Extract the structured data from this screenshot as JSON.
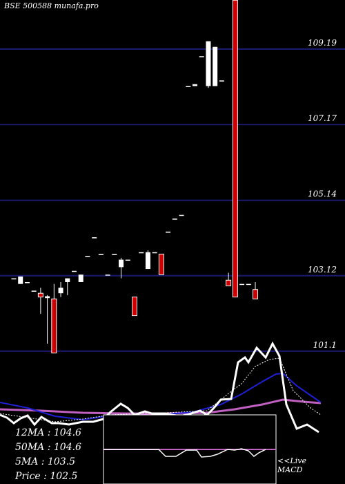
{
  "header": {
    "title": "BSE 500588  munafa.pro"
  },
  "colors": {
    "background": "#000000",
    "gridline": "#1a1a6e",
    "bull": "#ffffff",
    "bear": "#cc0000",
    "ma_fast": "#ffffff",
    "ma_mid": "#1f1fd6",
    "ma_slow": "#c060c0",
    "macd_line": "#ffffff",
    "macd_signal": "#c060c0"
  },
  "stats": {
    "ma12": "12MA : 104.6",
    "ma50": "50MA : 104.6",
    "ma5": "5MA : 103.5",
    "price": "Price   : 102.5"
  },
  "macd_panel": {
    "label_line1": "<<Live",
    "label_line2": "MACD"
  },
  "chart_data": {
    "type": "candlestick",
    "title": "BSE 500588  munafa.pro",
    "y_ticks": [
      109.19,
      107.17,
      105.14,
      103.12,
      101.1
    ],
    "ylim": [
      99.6,
      110.5
    ],
    "grid": true,
    "candles": [
      {
        "o": 103.05,
        "c": 103.05,
        "h": 103.05,
        "l": 103.05
      },
      {
        "o": 102.9,
        "c": 103.1,
        "h": 103.1,
        "l": 102.9
      },
      {
        "o": 102.95,
        "c": 102.95,
        "h": 102.95,
        "l": 102.95
      },
      {
        "o": 102.72,
        "c": 102.72,
        "h": 102.72,
        "l": 102.72
      },
      {
        "o": 102.65,
        "c": 102.55,
        "h": 102.8,
        "l": 102.1
      },
      {
        "o": 102.52,
        "c": 102.57,
        "h": 102.6,
        "l": 101.3
      },
      {
        "o": 102.5,
        "c": 101.05,
        "h": 102.9,
        "l": 101.05
      },
      {
        "o": 102.65,
        "c": 102.8,
        "h": 102.95,
        "l": 102.55
      },
      {
        "o": 102.95,
        "c": 103.05,
        "h": 103.05,
        "l": 102.6
      },
      {
        "o": 103.25,
        "c": 103.25,
        "h": 103.25,
        "l": 103.25
      },
      {
        "o": 102.95,
        "c": 103.15,
        "h": 103.15,
        "l": 102.95
      },
      {
        "o": 103.65,
        "c": 103.65,
        "h": 103.65,
        "l": 103.65
      },
      {
        "o": 104.15,
        "c": 104.15,
        "h": 104.15,
        "l": 104.15
      },
      {
        "o": 103.7,
        "c": 103.7,
        "h": 103.7,
        "l": 103.7
      },
      {
        "o": 103.15,
        "c": 103.15,
        "h": 103.15,
        "l": 103.15
      },
      {
        "o": 103.7,
        "c": 103.7,
        "h": 103.7,
        "l": 103.7
      },
      {
        "o": 103.35,
        "c": 103.55,
        "h": 103.6,
        "l": 103.05
      },
      {
        "o": 103.55,
        "c": 103.55,
        "h": 103.55,
        "l": 103.55
      },
      {
        "o": 102.55,
        "c": 102.05,
        "h": 102.55,
        "l": 102.05
      },
      {
        "o": 103.75,
        "c": 103.75,
        "h": 103.75,
        "l": 103.75
      },
      {
        "o": 103.3,
        "c": 103.75,
        "h": 103.8,
        "l": 103.3
      },
      {
        "o": 103.75,
        "c": 103.75,
        "h": 103.75,
        "l": 103.75
      },
      {
        "o": 103.7,
        "c": 103.15,
        "h": 103.7,
        "l": 103.15
      },
      {
        "o": 104.3,
        "c": 104.3,
        "h": 104.3,
        "l": 104.3
      },
      {
        "o": 104.65,
        "c": 104.65,
        "h": 104.65,
        "l": 104.65
      },
      {
        "o": 104.75,
        "c": 104.75,
        "h": 104.75,
        "l": 104.75
      },
      {
        "o": 108.2,
        "c": 108.2,
        "h": 108.2,
        "l": 108.2
      },
      {
        "o": 108.2,
        "c": 108.25,
        "h": 108.25,
        "l": 108.2
      },
      {
        "o": 109.0,
        "c": 109.0,
        "h": 109.0,
        "l": 109.0
      },
      {
        "o": 108.2,
        "c": 109.4,
        "h": 109.4,
        "l": 108.15
      },
      {
        "o": 108.2,
        "c": 109.25,
        "h": 109.25,
        "l": 108.2
      },
      {
        "o": 108.35,
        "c": 108.35,
        "h": 108.35,
        "l": 108.35
      },
      {
        "o": 103.0,
        "c": 102.85,
        "h": 103.2,
        "l": 102.85
      },
      {
        "o": 110.5,
        "c": 102.55,
        "h": 110.5,
        "l": 102.55
      },
      {
        "o": 102.9,
        "c": 102.9,
        "h": 102.9,
        "l": 102.9
      },
      {
        "o": 102.9,
        "c": 102.9,
        "h": 102.9,
        "l": 102.9
      },
      {
        "o": 102.75,
        "c": 102.5,
        "h": 102.95,
        "l": 102.5
      }
    ],
    "macd_panel_ylim": [
      0,
      1
    ]
  }
}
